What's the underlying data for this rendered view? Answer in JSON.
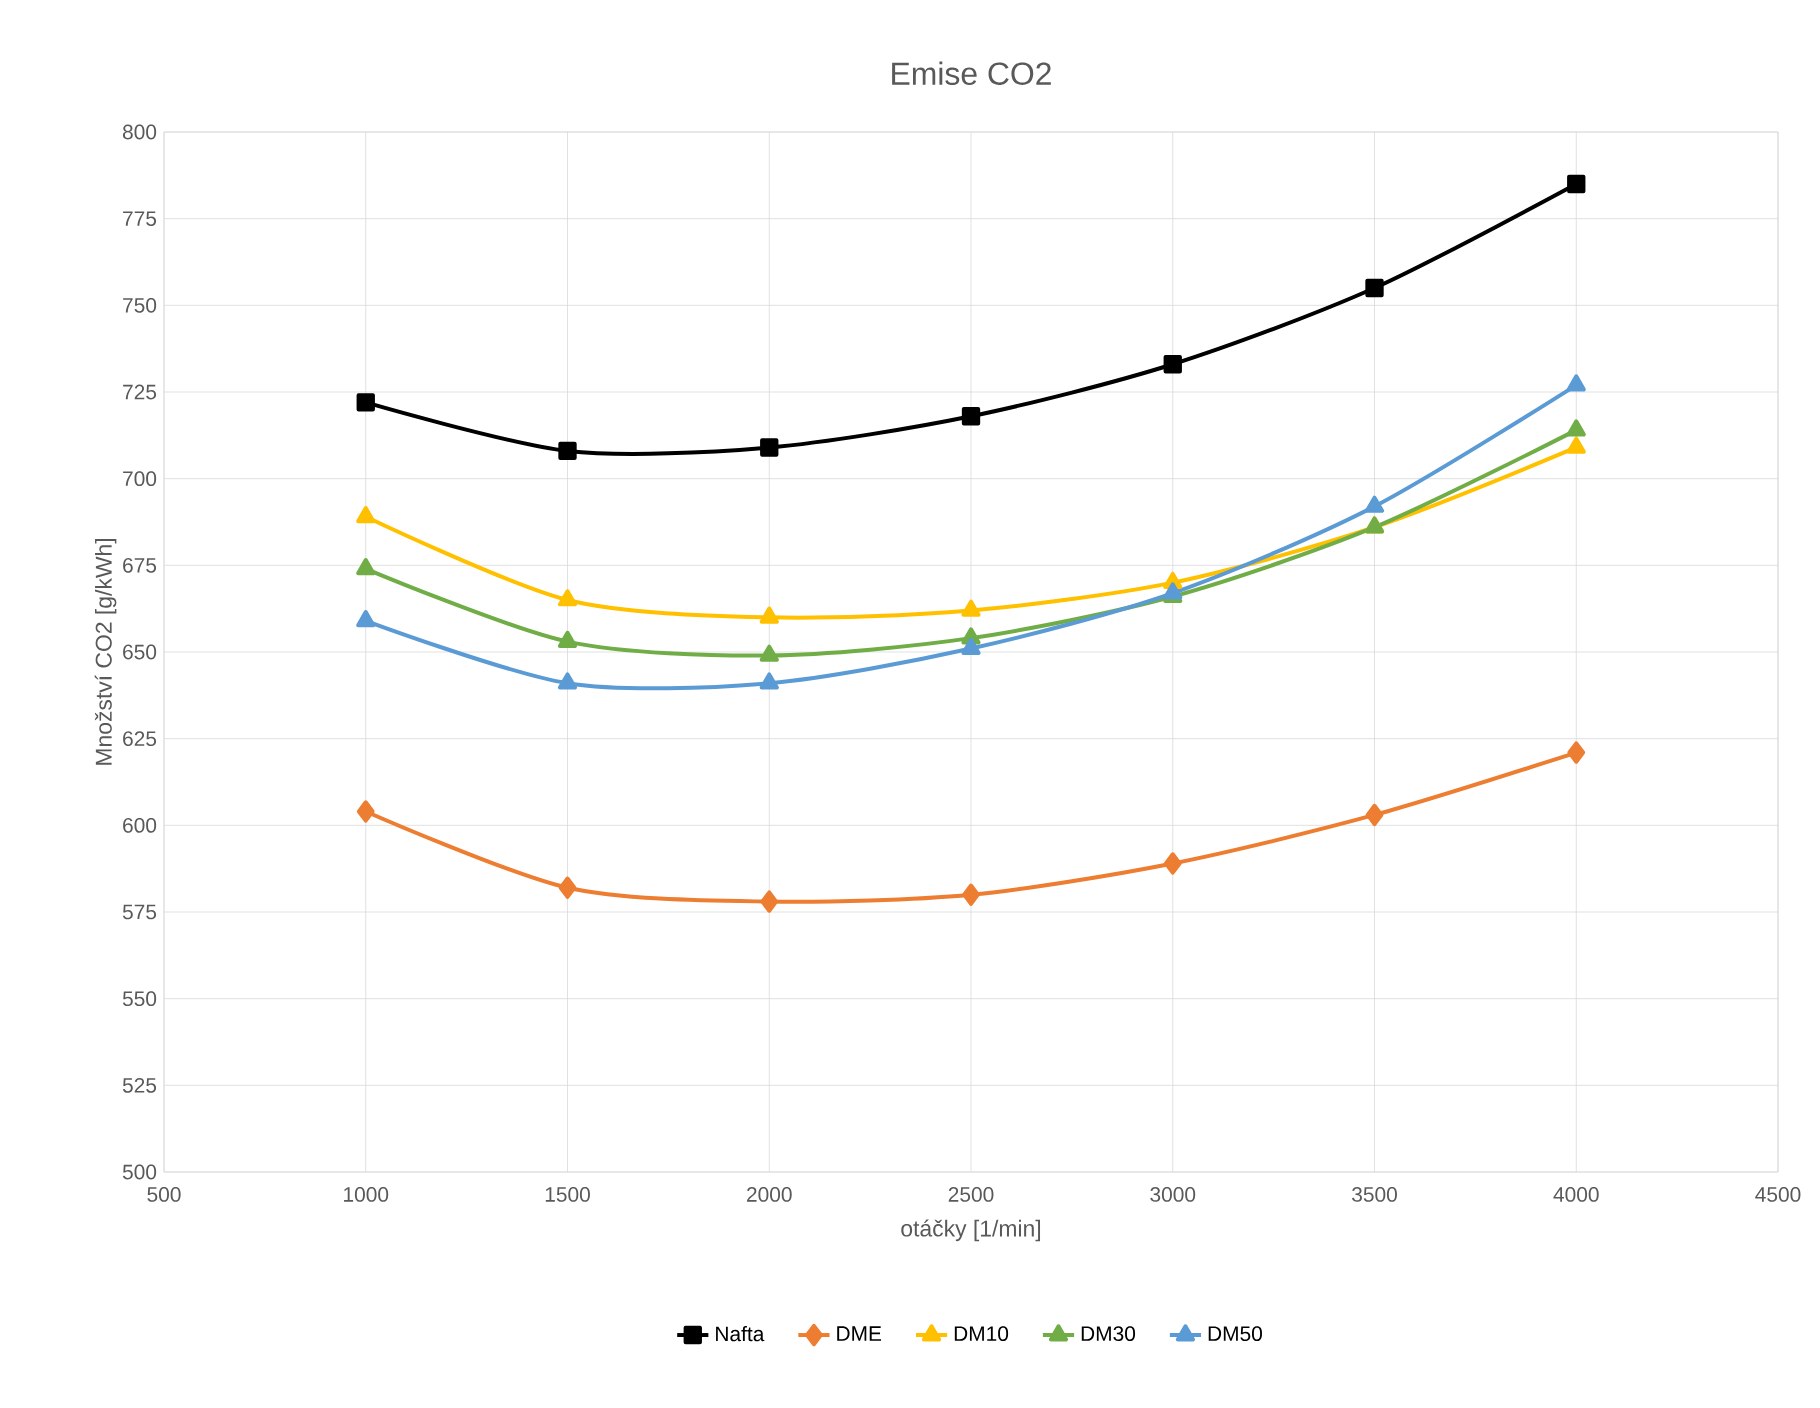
{
  "chart_data": {
    "type": "line",
    "title": "Emise CO2",
    "xlabel": "otáčky [1/min]",
    "ylabel": "Množství CO2 [g/kWh]",
    "x": [
      1000,
      1500,
      2000,
      2500,
      3000,
      3500,
      4000
    ],
    "series": [
      {
        "name": "Nafta",
        "color": "#000000",
        "marker": "square",
        "values": [
          722,
          708,
          709,
          718,
          733,
          755,
          785
        ]
      },
      {
        "name": "DME",
        "color": "#ed7d31",
        "marker": "diamond",
        "values": [
          604,
          582,
          578,
          580,
          589,
          603,
          621
        ]
      },
      {
        "name": "DM10",
        "color": "#ffc000",
        "marker": "triangle",
        "values": [
          689,
          665,
          660,
          662,
          670,
          686,
          709
        ]
      },
      {
        "name": "DM30",
        "color": "#70ad47",
        "marker": "triangle",
        "values": [
          674,
          653,
          649,
          654,
          666,
          686,
          714
        ]
      },
      {
        "name": "DM50",
        "color": "#5b9bd5",
        "marker": "triangle",
        "values": [
          659,
          641,
          641,
          651,
          667,
          692,
          727
        ]
      }
    ],
    "xlim": [
      500,
      4500
    ],
    "xticks": [
      500,
      1000,
      1500,
      2000,
      2500,
      3000,
      3500,
      4000,
      4500
    ],
    "ylim": [
      500,
      800
    ],
    "yticks": [
      500,
      525,
      550,
      575,
      600,
      625,
      650,
      675,
      700,
      725,
      750,
      775,
      800
    ],
    "grid": true,
    "legend": "bottom",
    "line_style": "solid"
  }
}
